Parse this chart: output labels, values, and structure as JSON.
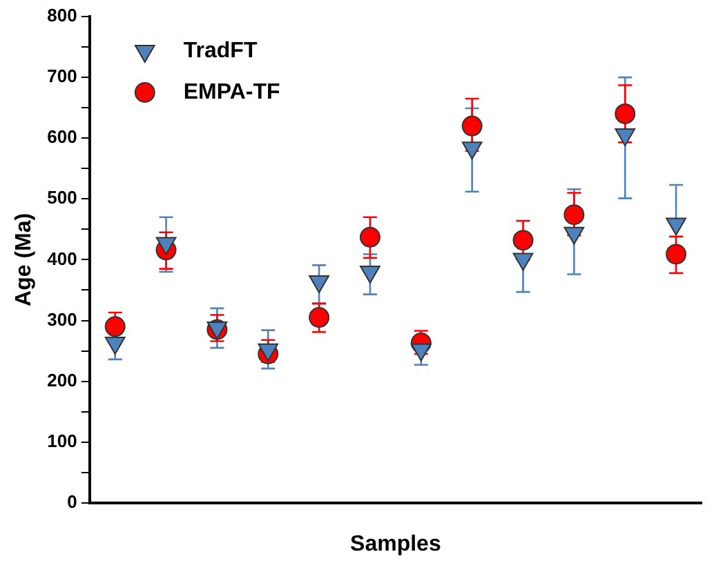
{
  "chart_data": {
    "type": "scatter",
    "xlabel": "Samples",
    "ylabel": "Age (Ma)",
    "categories": [
      null,
      null,
      null,
      null,
      null,
      null,
      null,
      null,
      null,
      null,
      null,
      null
    ],
    "ylim": [
      0,
      800
    ],
    "yticks": [
      0,
      {
        "value": 50,
        "label": null
      },
      100,
      {
        "value": 150,
        "label": null
      },
      200,
      {
        "value": 250,
        "label": null
      },
      300,
      {
        "value": 350,
        "label": null
      },
      400,
      {
        "value": 450,
        "label": null
      },
      500,
      {
        "value": 550,
        "label": null
      },
      600,
      {
        "value": 650,
        "label": null
      },
      700,
      {
        "value": 750,
        "label": null
      },
      800
    ],
    "grid": false,
    "legend": "top left",
    "series": [
      {
        "name": "TradFT",
        "color": "#4f81bd",
        "marker": "triangle",
        "values": [
          263,
          427,
          288,
          252,
          364,
          380,
          252,
          584,
          401,
          444,
          606,
          459
        ],
        "errors": [
          [
            236,
            263
          ],
          [
            380,
            470
          ],
          [
            255,
            320
          ],
          [
            221,
            284
          ],
          [
            328,
            391
          ],
          [
            343,
            409
          ],
          [
            227,
            262
          ],
          [
            512,
            649
          ],
          [
            347,
            401
          ],
          [
            376,
            516
          ],
          [
            501,
            700
          ],
          [
            459,
            523
          ]
        ]
      },
      {
        "name": "EMPA-TF",
        "color": "#ff0000",
        "marker": "circle",
        "values": [
          290,
          416,
          285,
          245,
          305,
          437,
          263,
          620,
          432,
          474,
          640,
          409
        ],
        "errors": [
          [
            268,
            313
          ],
          [
            385,
            445
          ],
          [
            266,
            309
          ],
          [
            232,
            268
          ],
          [
            281,
            328
          ],
          [
            403,
            470
          ],
          [
            245,
            283
          ],
          [
            579,
            665
          ],
          [
            400,
            464
          ],
          [
            440,
            510
          ],
          [
            593,
            687
          ],
          [
            378,
            438
          ]
        ]
      }
    ]
  }
}
